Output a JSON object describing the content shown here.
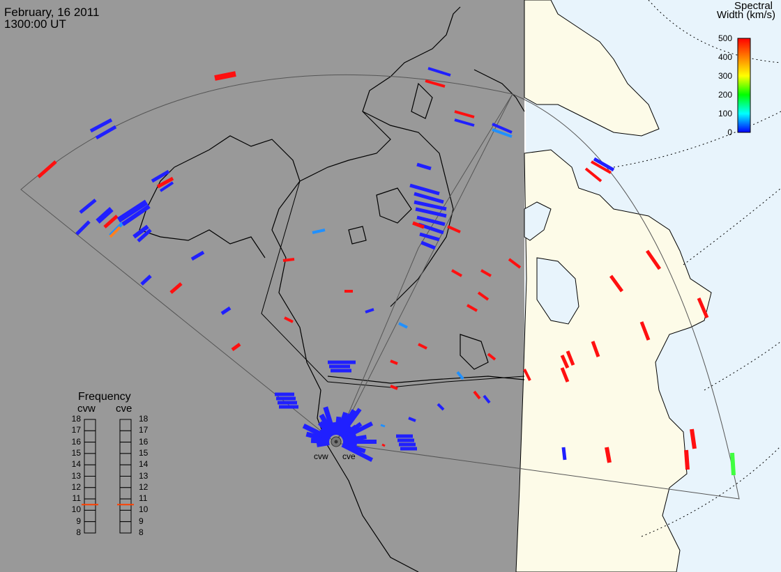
{
  "header": {
    "date": "February, 16 2011",
    "time": "1300:00 UT"
  },
  "colorbar": {
    "title_line1": "Spectral",
    "title_line2": "Width (km/s)",
    "ticks": [
      "500",
      "400",
      "300",
      "200",
      "100",
      "0"
    ],
    "min": 0,
    "max": 500,
    "stops": [
      "#0000ff",
      "#00ffff",
      "#00ff00",
      "#ffff00",
      "#ff8000",
      "#ff0000"
    ]
  },
  "frequency": {
    "title": "Frequency",
    "radars": [
      "cvw",
      "cve"
    ],
    "ticks": [
      "18",
      "17",
      "16",
      "15",
      "14",
      "13",
      "12",
      "11",
      "10",
      "9",
      "8"
    ],
    "cvw_mhz": 10.5,
    "cve_mhz": 10.5,
    "marker_color": "#ff4000"
  },
  "radars": {
    "west_label": "cvw",
    "east_label": "cve"
  },
  "colors": {
    "night": "#999999",
    "day_land": "#fdfbe8",
    "day_sea": "#e8f4fc",
    "echo_low": "#2020ff",
    "echo_high": "#ff1010",
    "echo_mid": "#2090ff",
    "echo_green": "#40ff40",
    "echo_orange": "#ff8020"
  }
}
